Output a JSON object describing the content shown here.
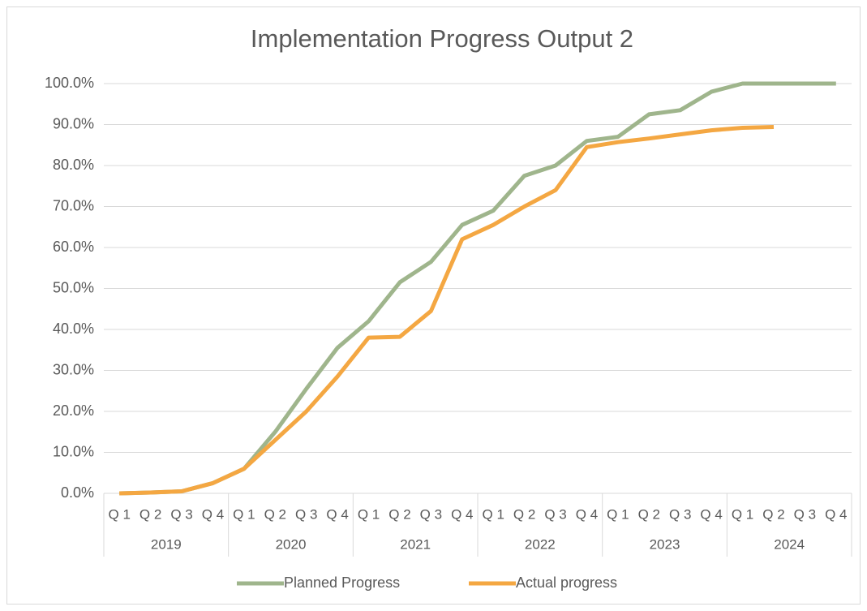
{
  "chart_data": {
    "type": "line",
    "title": "Implementation Progress Output 2",
    "categories": [
      "Q 1",
      "Q 2",
      "Q 3",
      "Q 4",
      "Q 1",
      "Q 2",
      "Q 3",
      "Q 4",
      "Q 1",
      "Q 2",
      "Q 3",
      "Q 4",
      "Q 1",
      "Q 2",
      "Q 3",
      "Q 4",
      "Q 1",
      "Q 2",
      "Q 3",
      "Q 4",
      "Q 1",
      "Q 2",
      "Q 3",
      "Q 4"
    ],
    "category_groups": [
      "2019",
      "2020",
      "2021",
      "2022",
      "2023",
      "2024"
    ],
    "series": [
      {
        "name": "Planned Progress",
        "color": "#9fb58c",
        "values": [
          0,
          0.2,
          0.5,
          2.5,
          6,
          15,
          25.5,
          35.5,
          42,
          51.5,
          56.5,
          65.5,
          69,
          77.5,
          80,
          86,
          87,
          92.5,
          93.5,
          98,
          100,
          100,
          100,
          100
        ]
      },
      {
        "name": "Actual progress",
        "color": "#f4a742",
        "values": [
          0,
          0.2,
          0.5,
          2.5,
          6,
          13,
          20,
          28.5,
          38,
          38.2,
          44.5,
          62,
          65.5,
          70,
          74,
          84.5,
          85.7,
          86.6,
          87.6,
          88.6,
          89.2,
          89.4,
          null,
          null
        ]
      }
    ],
    "ylim": [
      0,
      100
    ],
    "yticks": [
      {
        "value": 0,
        "label": "0.0%"
      },
      {
        "value": 10,
        "label": "10.0%"
      },
      {
        "value": 20,
        "label": "20.0%"
      },
      {
        "value": 30,
        "label": "30.0%"
      },
      {
        "value": 40,
        "label": "40.0%"
      },
      {
        "value": 50,
        "label": "50.0%"
      },
      {
        "value": 60,
        "label": "60.0%"
      },
      {
        "value": 70,
        "label": "70.0%"
      },
      {
        "value": 80,
        "label": "80.0%"
      },
      {
        "value": 90,
        "label": "90.0%"
      },
      {
        "value": 100,
        "label": "100.0%"
      }
    ],
    "grid": true,
    "legend": "bottom"
  }
}
